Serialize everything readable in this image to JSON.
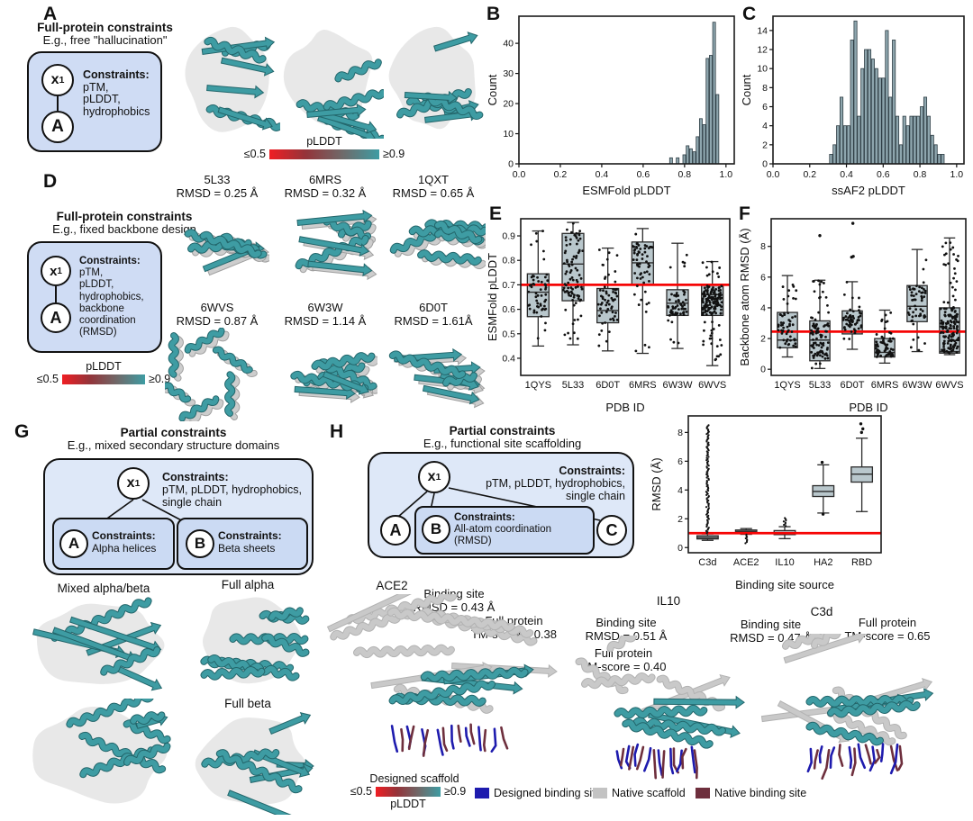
{
  "colors": {
    "teal": "#3E9CA3",
    "teal_edge": "#23666b",
    "blob": "#e8e8e8",
    "box_fill": "#b9c7cc",
    "hist_fill": "#8ea6ae",
    "red_line": "#f60505",
    "panel_box": "#cfdcf4",
    "panel_box_light": "#dee8f8",
    "inner_box": "#cbdaf3",
    "designed_binding": "#1e1bae",
    "native_scaffold": "#c3c3c3",
    "native_binding": "#6e2f3d",
    "gradient": [
      "#f01e23",
      "#93343a",
      "#6f6a6a",
      "#3E9CA3"
    ]
  },
  "panels": {
    "A": {
      "label": "A",
      "title": "Full-protein constraints",
      "subtitle": "E.g., free \"hallucination\"",
      "x1": {
        "base": "x",
        "sub": "1"
      },
      "node_a": "A",
      "constraints_title": "Constraints:",
      "constraints_body": "pTM,\npLDDT,\nhydrophobics",
      "colorbar": {
        "title": "pLDDT",
        "left": "≤0.5",
        "right": "≥0.9"
      }
    },
    "B": {
      "label": "B"
    },
    "C": {
      "label": "C"
    },
    "D": {
      "label": "D",
      "title": "Full-protein constraints",
      "subtitle": "E.g., fixed backbone design",
      "x1": {
        "base": "x",
        "sub": "1"
      },
      "node_a": "A",
      "constraints_title": "Constraints:",
      "constraints_body": "pTM,\npLDDT,\nhydrophobics,\nbackbone\ncoordination\n(RMSD)",
      "colorbar": {
        "title": "pLDDT",
        "left": "≤0.5",
        "right": "≥0.9"
      },
      "structures": [
        {
          "id": "5L33",
          "rmsd": "RMSD = 0.25 Å"
        },
        {
          "id": "6MRS",
          "rmsd": "RMSD = 0.32 Å"
        },
        {
          "id": "1QXT",
          "rmsd": "RMSD = 0.65 Å"
        },
        {
          "id": "6WVS",
          "rmsd": "RMSD = 0.87 Å"
        },
        {
          "id": "6W3W",
          "rmsd": "RMSD = 1.14 Å"
        },
        {
          "id": "6D0T",
          "rmsd": "RMSD = 1.61Å"
        }
      ]
    },
    "E": {
      "label": "E"
    },
    "F": {
      "label": "F"
    },
    "G": {
      "label": "G",
      "title": "Partial constraints",
      "subtitle": "E.g., mixed secondary structure domains",
      "x1": {
        "base": "x",
        "sub": "1"
      },
      "constraints_title": "Constraints:",
      "constraints_body": "pTM, pLDDT, hydrophobics,\nsingle chain",
      "box_a": {
        "node": "A",
        "title": "Constraints:",
        "body": "Alpha helices"
      },
      "box_b": {
        "node": "B",
        "title": "Constraints:",
        "body": "Beta sheets"
      },
      "labels": {
        "mixed": "Mixed alpha/beta",
        "alpha": "Full alpha",
        "beta": "Full beta"
      }
    },
    "H": {
      "label": "H",
      "title": "Partial constraints",
      "subtitle": "E.g., functional site scaffolding",
      "x1": {
        "base": "x",
        "sub": "1"
      },
      "constraints_title": "Constraints:",
      "constraints_body": "pTM, pLDDT, hydrophobics,\nsingle chain",
      "node_a": "A",
      "node_c": "C",
      "inner": {
        "node": "B",
        "title": "Constraints:",
        "body": "All-atom coordination\n(RMSD)"
      },
      "structures": [
        {
          "name": "ACE2",
          "site": "Binding site\nRMSD = 0.43 Å",
          "full": "Full protein\nTM-score = 0.38"
        },
        {
          "name": "IL10",
          "site": "Binding site\nRMSD = 0.51 Å",
          "full": "Full protein\nTM-score = 0.40"
        },
        {
          "name": "C3d",
          "site": "Binding site\nRMSD = 0.47 Å",
          "full": "Full protein\nTM-score = 0.65"
        }
      ],
      "legend": {
        "scaffold_label": "Designed scaffold",
        "colorbar": {
          "left": "≤0.5",
          "right": "≥0.9",
          "title": "pLDDT"
        },
        "items": [
          {
            "label": "Designed binding site",
            "color": "#1e1bae"
          },
          {
            "label": "Native scaffold",
            "color": "#c3c3c3"
          },
          {
            "label": "Native binding site",
            "color": "#6e2f3d"
          }
        ]
      }
    }
  },
  "chart_data": [
    {
      "id": "B",
      "type": "bar",
      "subtype": "histogram",
      "xlabel": "ESMFold pLDDT",
      "ylabel": "Count",
      "xlim": [
        0,
        1.04
      ],
      "ylim": [
        0,
        49
      ],
      "xticks": [
        0,
        0.2,
        0.4,
        0.6,
        0.8,
        1.0
      ],
      "yticks": [
        0,
        10,
        20,
        30,
        40
      ],
      "bin_width": 0.016,
      "bars": [
        {
          "x": 0.728,
          "count": 2
        },
        {
          "x": 0.76,
          "count": 2
        },
        {
          "x": 0.792,
          "count": 3
        },
        {
          "x": 0.808,
          "count": 6
        },
        {
          "x": 0.824,
          "count": 5
        },
        {
          "x": 0.84,
          "count": 4
        },
        {
          "x": 0.856,
          "count": 9
        },
        {
          "x": 0.872,
          "count": 15
        },
        {
          "x": 0.888,
          "count": 13
        },
        {
          "x": 0.904,
          "count": 35
        },
        {
          "x": 0.92,
          "count": 36
        },
        {
          "x": 0.936,
          "count": 47
        },
        {
          "x": 0.952,
          "count": 23
        }
      ]
    },
    {
      "id": "C",
      "type": "bar",
      "subtype": "histogram",
      "xlabel": "ssAF2 pLDDT",
      "ylabel": "Count",
      "xlim": [
        0,
        1.04
      ],
      "ylim": [
        0,
        15.5
      ],
      "xticks": [
        0,
        0.2,
        0.4,
        0.6,
        0.8,
        1.0
      ],
      "yticks": [
        0,
        2,
        4,
        6,
        8,
        10,
        12,
        14
      ],
      "bin_width": 0.019,
      "bars": [
        {
          "x": 0.308,
          "count": 1
        },
        {
          "x": 0.327,
          "count": 2
        },
        {
          "x": 0.346,
          "count": 4
        },
        {
          "x": 0.365,
          "count": 7
        },
        {
          "x": 0.384,
          "count": 4
        },
        {
          "x": 0.403,
          "count": 4
        },
        {
          "x": 0.422,
          "count": 13
        },
        {
          "x": 0.441,
          "count": 15
        },
        {
          "x": 0.46,
          "count": 5
        },
        {
          "x": 0.479,
          "count": 10
        },
        {
          "x": 0.498,
          "count": 12
        },
        {
          "x": 0.517,
          "count": 12
        },
        {
          "x": 0.536,
          "count": 11
        },
        {
          "x": 0.555,
          "count": 10
        },
        {
          "x": 0.574,
          "count": 9
        },
        {
          "x": 0.593,
          "count": 9
        },
        {
          "x": 0.612,
          "count": 14
        },
        {
          "x": 0.631,
          "count": 7
        },
        {
          "x": 0.65,
          "count": 13
        },
        {
          "x": 0.669,
          "count": 5
        },
        {
          "x": 0.688,
          "count": 2
        },
        {
          "x": 0.707,
          "count": 5
        },
        {
          "x": 0.726,
          "count": 4
        },
        {
          "x": 0.745,
          "count": 5
        },
        {
          "x": 0.764,
          "count": 5
        },
        {
          "x": 0.783,
          "count": 5
        },
        {
          "x": 0.802,
          "count": 6
        },
        {
          "x": 0.821,
          "count": 7
        },
        {
          "x": 0.84,
          "count": 5
        },
        {
          "x": 0.859,
          "count": 3
        },
        {
          "x": 0.878,
          "count": 2
        },
        {
          "x": 0.897,
          "count": 1
        },
        {
          "x": 0.916,
          "count": 1
        }
      ]
    },
    {
      "id": "E",
      "type": "box",
      "xlabel": "PDB ID",
      "ylabel": "ESMFold pLDDT",
      "ylim": [
        0.33,
        0.97
      ],
      "yticks": [
        0.4,
        0.5,
        0.6,
        0.7,
        0.8,
        0.9
      ],
      "refline": 0.7,
      "jitter": true,
      "box_frac": 0.62,
      "categories": [
        "1QYS",
        "5L33",
        "6D0T",
        "6MRS",
        "6W3W",
        "6WVS"
      ],
      "stats": [
        {
          "lo": 0.45,
          "q1": 0.57,
          "med": 0.67,
          "q3": 0.745,
          "hi": 0.92,
          "n": 55
        },
        {
          "lo": 0.455,
          "q1": 0.635,
          "med": 0.785,
          "q3": 0.91,
          "hi": 0.955,
          "n": 90
        },
        {
          "lo": 0.43,
          "q1": 0.545,
          "med": 0.595,
          "q3": 0.685,
          "hi": 0.85,
          "n": 60
        },
        {
          "lo": 0.42,
          "q1": 0.7,
          "med": 0.79,
          "q3": 0.875,
          "hi": 0.93,
          "n": 60
        },
        {
          "lo": 0.44,
          "q1": 0.575,
          "med": 0.625,
          "q3": 0.68,
          "hi": 0.87,
          "n": 55
        },
        {
          "lo": 0.37,
          "q1": 0.575,
          "med": 0.66,
          "q3": 0.7,
          "hi": 0.795,
          "n": 150
        }
      ]
    },
    {
      "id": "F",
      "type": "box",
      "xlabel": "PDB ID",
      "ylabel": "Backbone atom RMSD (Å)",
      "ylim": [
        -0.4,
        9.8
      ],
      "yticks": [
        0,
        2,
        4,
        6,
        8
      ],
      "refline": 2.45,
      "jitter": true,
      "box_frac": 0.62,
      "categories": [
        "1QYS",
        "5L33",
        "6D0T",
        "6MRS",
        "6W3W",
        "6WVS"
      ],
      "stats": [
        {
          "lo": 0.8,
          "q1": 1.4,
          "med": 1.9,
          "q3": 3.7,
          "hi": 6.1,
          "n": 55
        },
        {
          "lo": 0.05,
          "q1": 0.55,
          "med": 1.9,
          "q3": 3.15,
          "hi": 5.8,
          "n": 90,
          "outliers": [
            8.7
          ]
        },
        {
          "lo": 1.3,
          "q1": 2.3,
          "med": 2.45,
          "q3": 3.8,
          "hi": 5.7,
          "n": 55,
          "outliers": [
            7.3,
            7.35,
            9.5
          ]
        },
        {
          "lo": 0.4,
          "q1": 0.8,
          "med": 1.1,
          "q3": 2.0,
          "hi": 3.85,
          "n": 60
        },
        {
          "lo": 1.15,
          "q1": 3.1,
          "med": 4.1,
          "q3": 5.45,
          "hi": 7.8,
          "n": 55
        },
        {
          "lo": 0.95,
          "q1": 1.05,
          "med": 1.15,
          "q3": 4.0,
          "hi": 8.55,
          "n": 150
        }
      ]
    },
    {
      "id": "H",
      "type": "box",
      "xlabel": "Binding site source",
      "ylabel": "RMSD (Å)",
      "ylim": [
        -0.36,
        9.15
      ],
      "yticks": [
        0,
        2,
        4,
        6,
        8
      ],
      "refline": 1.0,
      "jitter": false,
      "box_frac": 0.55,
      "categories": [
        "C3d",
        "ACE2",
        "IL10",
        "HA2",
        "RBD"
      ],
      "stats": [
        {
          "lo": 0.5,
          "q1": 0.6,
          "med": 0.7,
          "q3": 0.82,
          "hi": 0.95,
          "stack": [
            1.0,
            8.5
          ]
        },
        {
          "lo": 0.92,
          "q1": 1.02,
          "med": 1.12,
          "q3": 1.22,
          "hi": 1.32,
          "stack": [
            0.3,
            0.9
          ]
        },
        {
          "lo": 0.62,
          "q1": 0.9,
          "med": 1.02,
          "q3": 1.18,
          "hi": 1.45,
          "stack": [
            1.5,
            2.05
          ]
        },
        {
          "lo": 2.4,
          "q1": 3.55,
          "med": 3.9,
          "q3": 4.3,
          "hi": 5.75,
          "outliers": [
            2.32,
            5.92
          ]
        },
        {
          "lo": 2.5,
          "q1": 4.55,
          "med": 5.1,
          "q3": 5.6,
          "hi": 7.6,
          "outliers": [
            8.0,
            8.25,
            8.6
          ]
        }
      ]
    }
  ]
}
